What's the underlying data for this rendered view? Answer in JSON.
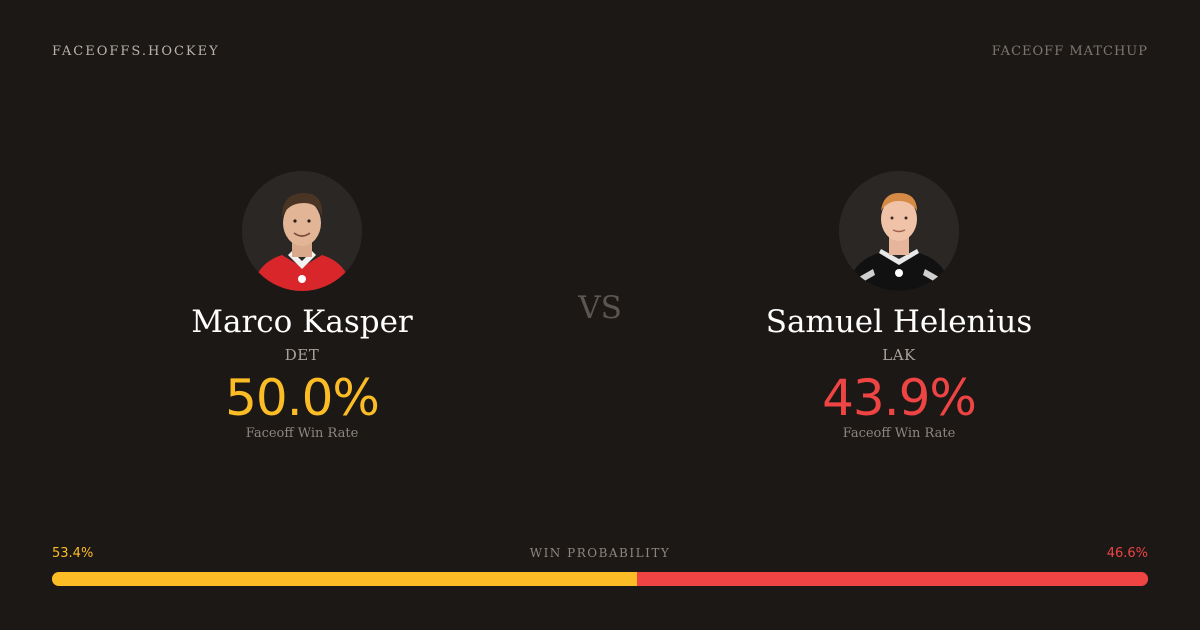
{
  "header": {
    "brand": "FACEOFFS.HOCKEY",
    "label": "FACEOFF MATCHUP"
  },
  "vs_label": "VS",
  "players": {
    "left": {
      "name": "Marco Kasper",
      "team": "DET",
      "win_rate": "50.0%",
      "win_rate_label": "Faceoff Win Rate",
      "jersey_color": "#d9262b"
    },
    "right": {
      "name": "Samuel Helenius",
      "team": "LAK",
      "win_rate": "43.9%",
      "win_rate_label": "Faceoff Win Rate",
      "jersey_color": "#111111"
    }
  },
  "win_probability": {
    "title": "WIN PROBABILITY",
    "left_label": "53.4%",
    "right_label": "46.6%",
    "left_value": 53.4,
    "right_value": 46.6,
    "left_color": "#fbbc26",
    "right_color": "#ee4444"
  }
}
